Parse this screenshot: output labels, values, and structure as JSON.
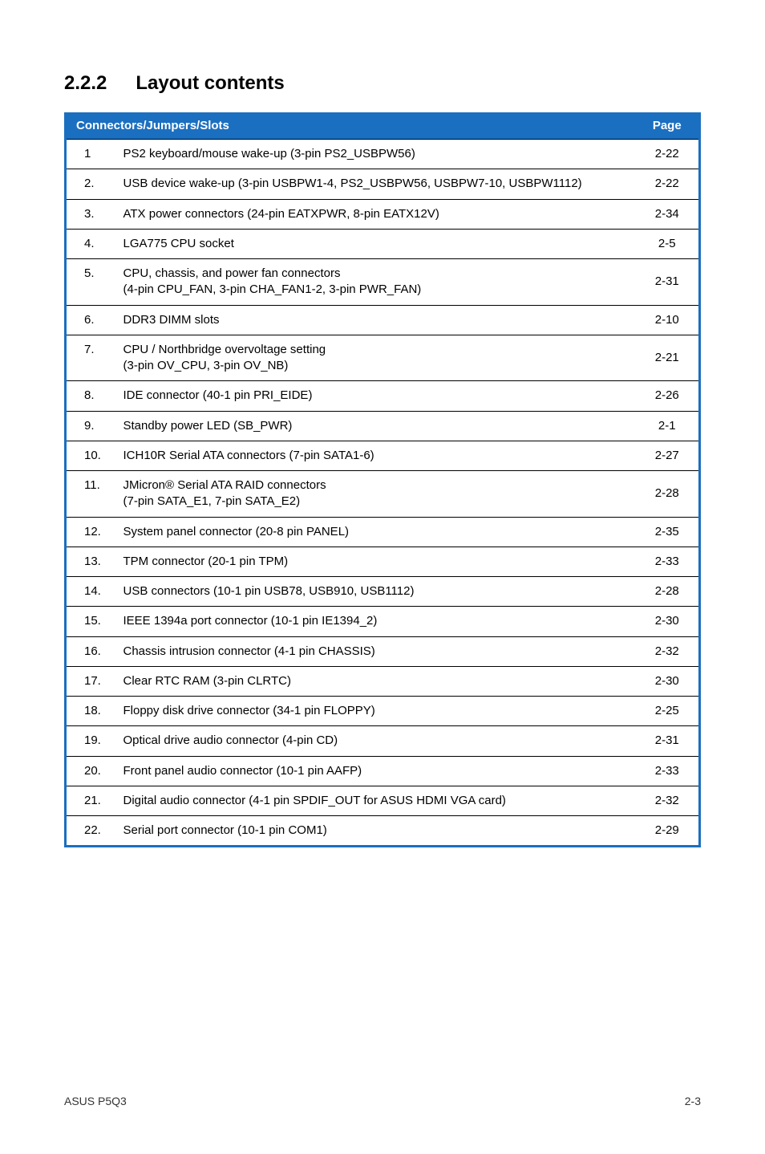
{
  "section": {
    "number": "2.2.2",
    "title": "Layout contents"
  },
  "table": {
    "header": {
      "left": "Connectors/Jumpers/Slots",
      "right": "Page"
    },
    "header_bg": "#1b6fc0",
    "border_color": "#1b6fc0",
    "rows": [
      {
        "n": "1",
        "desc": "PS2 keyboard/mouse wake-up (3-pin PS2_USBPW56)",
        "page": "2-22"
      },
      {
        "n": "2.",
        "desc": "USB device wake-up (3-pin USBPW1-4, PS2_USBPW56, USBPW7-10, USBPW1112)",
        "page": "2-22"
      },
      {
        "n": "3.",
        "desc": "ATX power connectors (24-pin EATXPWR, 8-pin EATX12V)",
        "page": "2-34"
      },
      {
        "n": "4.",
        "desc": "LGA775 CPU socket",
        "page": "2-5"
      },
      {
        "n": "5.",
        "desc": "CPU, chassis, and power fan connectors\n(4-pin CPU_FAN, 3-pin CHA_FAN1-2, 3-pin PWR_FAN)",
        "page": "2-31"
      },
      {
        "n": "6.",
        "desc": "DDR3 DIMM slots",
        "page": "2-10"
      },
      {
        "n": "7.",
        "desc": "CPU / Northbridge overvoltage setting\n(3-pin OV_CPU, 3-pin OV_NB)",
        "page": "2-21"
      },
      {
        "n": "8.",
        "desc": "IDE connector (40-1 pin PRI_EIDE)",
        "page": "2-26"
      },
      {
        "n": "9.",
        "desc": "Standby power LED (SB_PWR)",
        "page": "2-1"
      },
      {
        "n": "10.",
        "desc": "ICH10R Serial ATA connectors (7-pin SATA1-6)",
        "page": "2-27"
      },
      {
        "n": "11.",
        "desc": "JMicron® Serial ATA RAID connectors\n(7-pin SATA_E1, 7-pin SATA_E2)",
        "page": "2-28"
      },
      {
        "n": "12.",
        "desc": "System panel connector (20-8 pin PANEL)",
        "page": "2-35"
      },
      {
        "n": "13.",
        "desc": "TPM connector (20-1 pin TPM)",
        "page": "2-33"
      },
      {
        "n": "14.",
        "desc": "USB connectors (10-1 pin USB78, USB910, USB1112)",
        "page": "2-28"
      },
      {
        "n": "15.",
        "desc": "IEEE 1394a port connector (10-1 pin IE1394_2)",
        "page": "2-30"
      },
      {
        "n": "16.",
        "desc": "Chassis intrusion connector (4-1 pin CHASSIS)",
        "page": "2-32"
      },
      {
        "n": "17.",
        "desc": "Clear RTC RAM (3-pin CLRTC)",
        "page": "2-30"
      },
      {
        "n": "18.",
        "desc": "Floppy disk drive connector (34-1 pin FLOPPY)",
        "page": "2-25"
      },
      {
        "n": "19.",
        "desc": "Optical drive audio connector (4-pin CD)",
        "page": "2-31"
      },
      {
        "n": "20.",
        "desc": "Front panel audio connector (10-1 pin AAFP)",
        "page": "2-33"
      },
      {
        "n": "21.",
        "desc": "Digital audio connector (4-1 pin SPDIF_OUT for ASUS HDMI VGA card)",
        "page": "2-32"
      },
      {
        "n": "22.",
        "desc": "Serial port connector (10-1 pin COM1)",
        "page": "2-29"
      }
    ]
  },
  "footer": {
    "left": "ASUS P5Q3",
    "right": "2-3"
  }
}
